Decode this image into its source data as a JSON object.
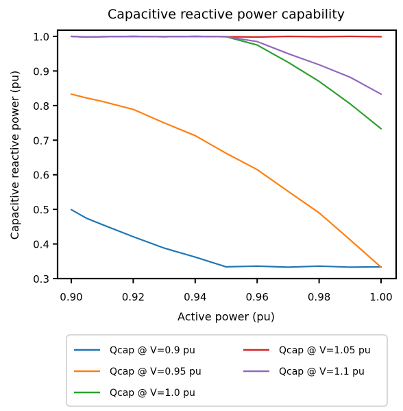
{
  "chart_data": {
    "type": "line",
    "title": "Capacitive reactive power capability",
    "xlabel": "Active power (pu)",
    "ylabel": "Capacitive reactive power (pu)",
    "xlim": [
      0.9,
      1.0
    ],
    "ylim": [
      0.3,
      1.0
    ],
    "xticks": [
      "0.90",
      "0.92",
      "0.94",
      "0.96",
      "0.98",
      "1.00"
    ],
    "yticks": [
      "0.3",
      "0.4",
      "0.5",
      "0.6",
      "0.7",
      "0.8",
      "0.9",
      "1.0"
    ],
    "grid": false,
    "legend_position": "below",
    "x": [
      0.9,
      0.905,
      0.91,
      0.92,
      0.93,
      0.94,
      0.95,
      0.96,
      0.97,
      0.98,
      0.99,
      1.0
    ],
    "series": [
      {
        "name": "Qcap @ V=0.9 pu",
        "color": "#1f77b4",
        "values": [
          0.499,
          0.474,
          0.456,
          0.421,
          0.388,
          0.362,
          0.334,
          0.336,
          0.333,
          0.336,
          0.333,
          0.334
        ]
      },
      {
        "name": "Qcap @ V=0.95 pu",
        "color": "#ff7f0e",
        "values": [
          0.833,
          0.822,
          0.812,
          0.789,
          0.75,
          0.713,
          0.662,
          0.615,
          0.552,
          0.49,
          0.412,
          0.333
        ]
      },
      {
        "name": "Qcap @ V=1.0 pu",
        "color": "#2ca02c",
        "values": [
          1.0,
          0.998,
          0.999,
          1.0,
          0.999,
          1.0,
          0.999,
          0.975,
          0.925,
          0.87,
          0.805,
          0.733
        ]
      },
      {
        "name": "Qcap @ V=1.05 pu",
        "color": "#d62728",
        "values": [
          1.0,
          0.998,
          0.999,
          1.0,
          0.999,
          1.0,
          0.999,
          0.998,
          1.0,
          0.999,
          1.0,
          0.999
        ]
      },
      {
        "name": "Qcap @ V=1.1 pu",
        "color": "#9467bd",
        "values": [
          1.0,
          0.998,
          0.999,
          1.0,
          0.999,
          1.0,
          0.999,
          0.985,
          0.95,
          0.918,
          0.882,
          0.833
        ]
      }
    ]
  }
}
